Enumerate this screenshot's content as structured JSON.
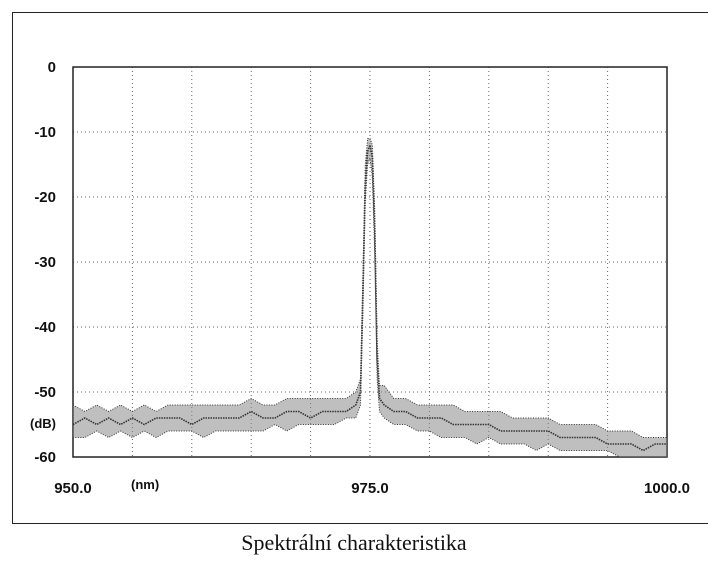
{
  "caption": "Spektrální charakteristika",
  "chart_data": {
    "type": "line",
    "title": "",
    "xlabel": "(nm)",
    "ylabel": "(dB)",
    "xlim": [
      950.0,
      1000.0
    ],
    "ylim": [
      -60,
      0
    ],
    "xticks": [
      950.0,
      975.0,
      1000.0
    ],
    "xtick_labels": [
      "950.0",
      "975.0",
      "1000.0"
    ],
    "yticks": [
      0,
      -10,
      -20,
      -30,
      -40,
      -50,
      -60
    ],
    "ytick_labels": [
      "0",
      "-10",
      "-20",
      "-30",
      "-40",
      "-50",
      "-60"
    ],
    "grid": true,
    "grid_style": "dotted",
    "line_color": "#333333",
    "series": [
      {
        "x": [
          950.0,
          951.0,
          952.0,
          953.0,
          954.0,
          955.0,
          956.0,
          957.0,
          958.0,
          959.0,
          960.0,
          961.0,
          962.0,
          963.0,
          964.0,
          965.0,
          966.0,
          967.0,
          968.0,
          969.0,
          970.0,
          971.0,
          972.0,
          973.0,
          973.8,
          974.2,
          974.4,
          974.6,
          974.8,
          975.0,
          975.2,
          975.4,
          975.6,
          975.8,
          976.2,
          977.0,
          978.0,
          979.0,
          980.0,
          981.0,
          982.0,
          983.0,
          984.0,
          985.0,
          986.0,
          987.0,
          988.0,
          989.0,
          990.0,
          991.0,
          992.0,
          993.0,
          994.0,
          995.0,
          996.0,
          997.0,
          998.0,
          999.0,
          1000.0
        ],
        "y": [
          -55,
          -54,
          -55,
          -54,
          -55,
          -54,
          -55,
          -54,
          -54,
          -54,
          -55,
          -54,
          -54,
          -54,
          -54,
          -53,
          -54,
          -54,
          -53,
          -53,
          -54,
          -53,
          -53,
          -53,
          -52,
          -50,
          -35,
          -18,
          -13,
          -12,
          -14,
          -25,
          -45,
          -51,
          -52,
          -53,
          -53,
          -54,
          -54,
          -54,
          -55,
          -55,
          -55,
          -55,
          -56,
          -56,
          -56,
          -56,
          -56,
          -57,
          -57,
          -57,
          -57,
          -58,
          -58,
          -58,
          -59,
          -58,
          -58
        ],
        "y_low": [
          -57,
          -57,
          -56,
          -57,
          -56,
          -57,
          -56,
          -57,
          -56,
          -56,
          -56,
          -57,
          -56,
          -56,
          -56,
          -56,
          -56,
          -55,
          -56,
          -55,
          -55,
          -55,
          -55,
          -54,
          -54,
          -52,
          -38,
          -21,
          -15,
          -14,
          -17,
          -29,
          -48,
          -53,
          -54,
          -55,
          -55,
          -56,
          -56,
          -57,
          -57,
          -57,
          -58,
          -57,
          -58,
          -58,
          -58,
          -59,
          -58,
          -59,
          -59,
          -59,
          -59,
          -59,
          -60,
          -60,
          -60,
          -60,
          -60
        ],
        "y_high": [
          -52,
          -53,
          -52,
          -53,
          -52,
          -53,
          -52,
          -53,
          -52,
          -52,
          -52,
          -52,
          -52,
          -52,
          -52,
          -51,
          -52,
          -52,
          -51,
          -51,
          -51,
          -51,
          -51,
          -51,
          -50,
          -48,
          -32,
          -15,
          -11,
          -11,
          -12,
          -22,
          -42,
          -49,
          -49,
          -51,
          -51,
          -52,
          -52,
          -52,
          -52,
          -53,
          -53,
          -53,
          -53,
          -54,
          -54,
          -54,
          -54,
          -55,
          -55,
          -55,
          -55,
          -56,
          -56,
          -56,
          -57,
          -57,
          -57
        ]
      }
    ]
  }
}
